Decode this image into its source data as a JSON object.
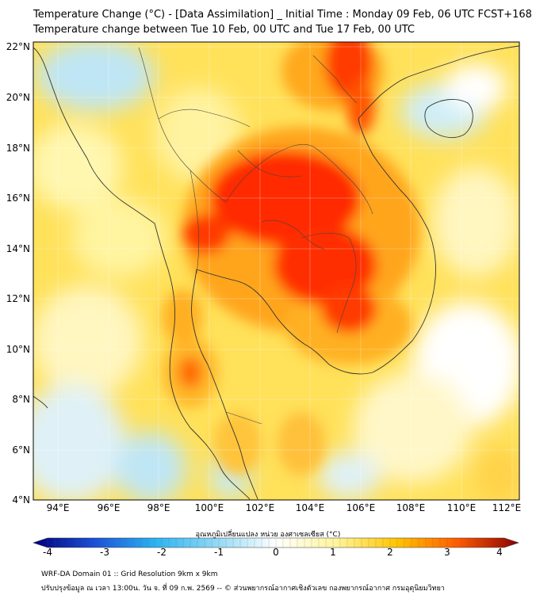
{
  "header": {
    "title_line1": "Temperature Change (°C) - [Data Assimilation] _ Initial Time : Monday 09 Feb, 06 UTC FCST+168",
    "title_line2": "Temperature change between Tue 10 Feb, 00 UTC and Tue 17 Feb, 00 UTC"
  },
  "map": {
    "lat_labels": [
      "22°N",
      "20°N",
      "18°N",
      "16°N",
      "14°N",
      "12°N",
      "10°N",
      "8°N",
      "6°N",
      "4°N"
    ],
    "lon_labels": [
      "94°E",
      "96°E",
      "98°E",
      "100°E",
      "102°E",
      "104°E",
      "106°E",
      "108°E",
      "110°E",
      "112°E"
    ]
  },
  "colorbar": {
    "title": "อุณหภูมิเปลี่ยนแปลง หน่วย องศาเซลเซียส (°C)",
    "tick_labels": [
      "-4",
      "-3",
      "-2",
      "-1",
      "0",
      "1",
      "2",
      "3",
      "4"
    ],
    "colors": [
      "#00007a",
      "#1a4fd8",
      "#2bb3f2",
      "#8fd8f5",
      "#ffffff",
      "#fff59a",
      "#ffc400",
      "#ff5a00",
      "#8a0000"
    ]
  },
  "footer": {
    "line1": "WRF-DA Domain 01 :: Grid Resolution 9km x 9km",
    "line2": "ปรับปรุงข้อมูล ณ เวลา 13:00น. วัน จ. ที่ 09 ก.พ. 2569 -- © ส่วนพยากรณ์อากาศเชิงตัวเลข กองพยากรณ์อากาศ กรมอุตุนิยมวิทยา"
  }
}
